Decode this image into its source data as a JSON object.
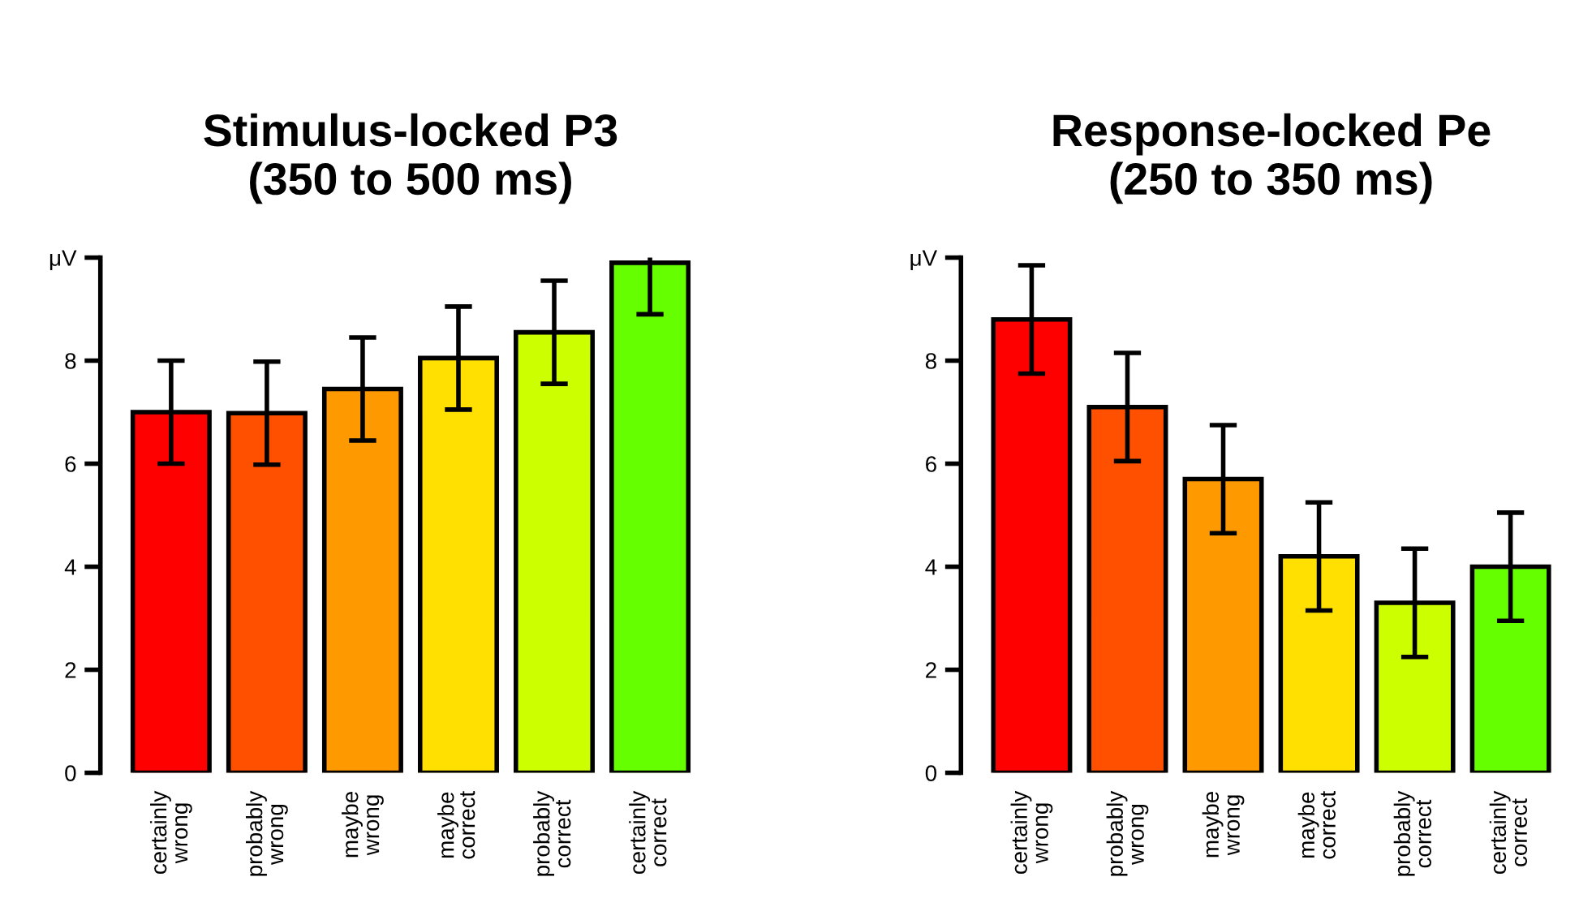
{
  "chart_data": [
    {
      "type": "bar",
      "title": "Stimulus-locked P3\n(350 to 500 ms)",
      "categories": [
        "certainly\nwrong",
        "probably\nwrong",
        "maybe\nwrong",
        "maybe\ncorrect",
        "probably\ncorrect",
        "certainly\ncorrect"
      ],
      "values": [
        7.0,
        6.98,
        7.45,
        8.05,
        8.55,
        9.9
      ],
      "errors": [
        1.0,
        1.0,
        1.0,
        1.0,
        1.0,
        1.0
      ],
      "colors": [
        "#ff0000",
        "#ff5000",
        "#ff9900",
        "#ffe000",
        "#ccff00",
        "#66ff00"
      ],
      "ylim": [
        0,
        10
      ],
      "yticks": [
        0,
        2,
        4,
        6,
        8,
        {
          "value": 10,
          "label": "μV"
        }
      ],
      "grid": false,
      "legend": false
    },
    {
      "type": "bar",
      "title": "Response-locked Pe\n(250 to 350 ms)",
      "categories": [
        "certainly\nwrong",
        "probably\nwrong",
        "maybe\nwrong",
        "maybe\ncorrect",
        "probably\ncorrect",
        "certainly\ncorrect"
      ],
      "values": [
        8.8,
        7.1,
        5.7,
        4.2,
        3.3,
        4.0
      ],
      "errors": [
        1.05,
        1.05,
        1.05,
        1.05,
        1.05,
        1.05
      ],
      "colors": [
        "#ff0000",
        "#ff5000",
        "#ff9900",
        "#ffe000",
        "#ccff00",
        "#66ff00"
      ],
      "ylim": [
        0,
        10
      ],
      "yticks": [
        0,
        2,
        4,
        6,
        8,
        {
          "value": 10,
          "label": "μV"
        }
      ],
      "grid": false,
      "legend": false
    }
  ]
}
